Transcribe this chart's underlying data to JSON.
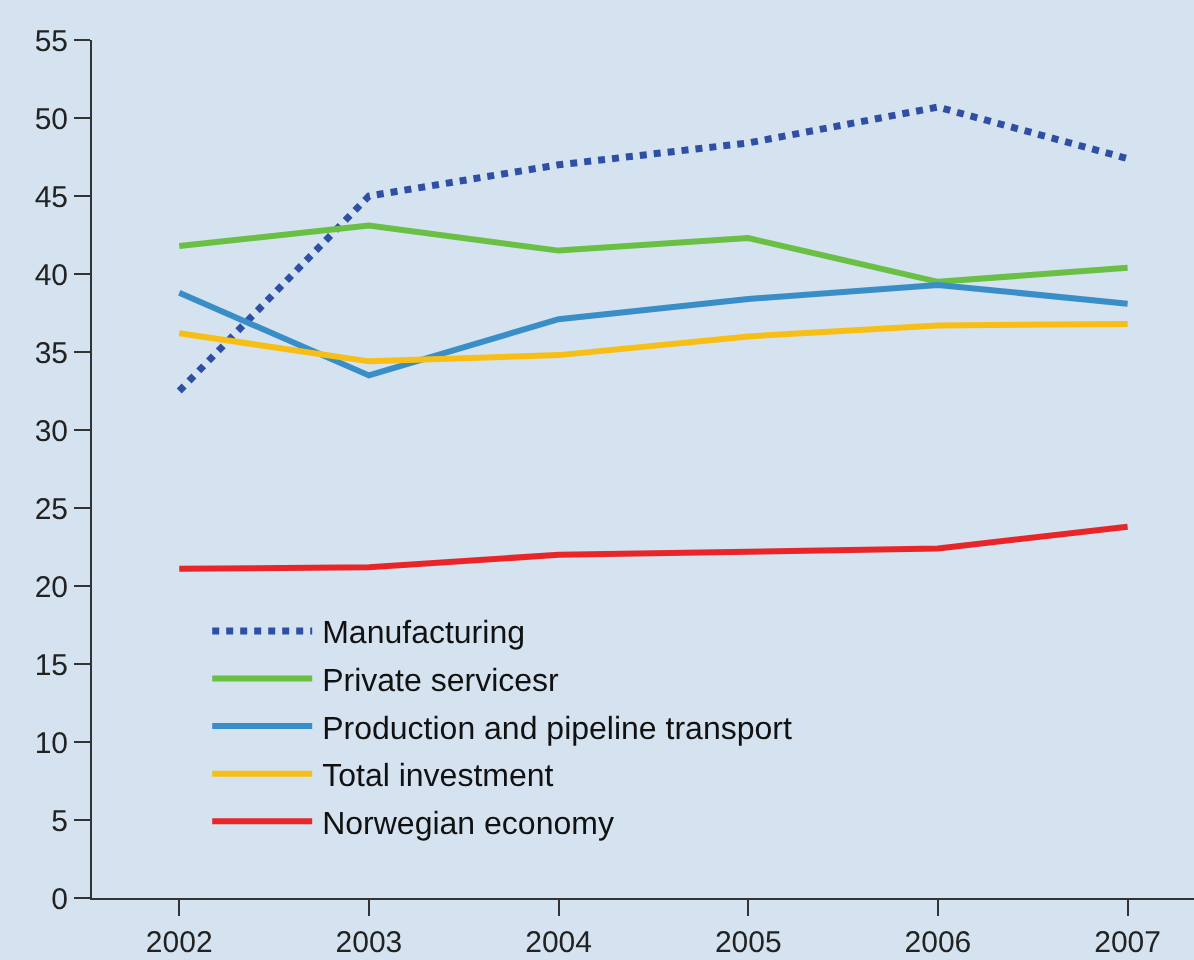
{
  "chart_data": {
    "type": "line",
    "x": [
      2002,
      2003,
      2004,
      2005,
      2006,
      2007
    ],
    "xlim": [
      2001.54,
      2007.35
    ],
    "xticks": [
      2002,
      2003,
      2004,
      2005,
      2006,
      2007
    ],
    "ylim": [
      0,
      55
    ],
    "yticks": [
      0,
      5,
      10,
      15,
      20,
      25,
      30,
      35,
      40,
      45,
      50,
      55
    ],
    "grid": false,
    "legend": "bottom left",
    "marker": "none",
    "series": [
      {
        "name": "Manufacturing",
        "color": "#2e4fa3",
        "line_style": "dotted",
        "values": [
          32.5,
          45.0,
          47.0,
          48.4,
          50.7,
          47.4
        ]
      },
      {
        "name": "Private servicesr",
        "color": "#6abf45",
        "values": [
          41.8,
          43.1,
          41.5,
          42.3,
          39.5,
          40.4
        ]
      },
      {
        "name": "Production and pipeline transport",
        "color": "#3a8ec8",
        "values": [
          38.8,
          33.5,
          37.1,
          38.4,
          39.3,
          38.1
        ]
      },
      {
        "name": "Total investment",
        "color": "#f7be16",
        "values": [
          36.2,
          34.4,
          34.8,
          36.0,
          36.7,
          36.8
        ]
      },
      {
        "name": "Norwegian economy",
        "color": "#e8262a",
        "values": [
          21.1,
          21.2,
          22.0,
          22.2,
          22.4,
          23.8
        ]
      }
    ]
  }
}
